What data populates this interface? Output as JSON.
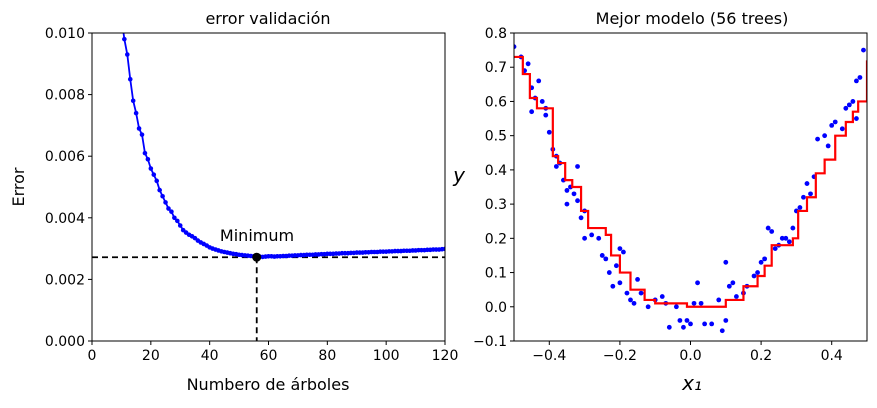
{
  "chart_data": [
    {
      "type": "line",
      "title": "error validación",
      "xlabel": "Numbero de árboles",
      "ylabel": "Error",
      "xlim": [
        0,
        120
      ],
      "ylim": [
        0,
        0.01
      ],
      "xticks": [
        "0",
        "20",
        "40",
        "60",
        "80",
        "100",
        "120"
      ],
      "yticks": [
        "0.000",
        "0.002",
        "0.004",
        "0.006",
        "0.008",
        "0.010"
      ],
      "annotation": "Minimum",
      "min_point": {
        "x": 56,
        "y": 0.00272
      },
      "series_color": "#0000ff",
      "x": [
        10,
        11,
        12,
        13,
        14,
        15,
        16,
        17,
        18,
        19,
        20,
        21,
        22,
        23,
        24,
        25,
        26,
        27,
        28,
        29,
        30,
        31,
        32,
        33,
        34,
        35,
        36,
        37,
        38,
        39,
        40,
        41,
        42,
        43,
        44,
        45,
        46,
        47,
        48,
        49,
        50,
        51,
        52,
        53,
        54,
        55,
        56,
        57,
        58,
        59,
        60,
        61,
        62,
        63,
        64,
        65,
        66,
        67,
        68,
        69,
        70,
        71,
        72,
        73,
        74,
        75,
        76,
        77,
        78,
        79,
        80,
        81,
        82,
        83,
        84,
        85,
        86,
        87,
        88,
        89,
        90,
        91,
        92,
        93,
        94,
        95,
        96,
        97,
        98,
        99,
        100,
        101,
        102,
        103,
        104,
        105,
        106,
        107,
        108,
        109,
        110,
        111,
        112,
        113,
        114,
        115,
        116,
        117,
        118,
        119,
        120
      ],
      "y": [
        0.0105,
        0.0098,
        0.0093,
        0.0085,
        0.0078,
        0.0074,
        0.0069,
        0.0067,
        0.0061,
        0.0059,
        0.0056,
        0.0054,
        0.0052,
        0.0049,
        0.0047,
        0.0045,
        0.0043,
        0.0042,
        0.004,
        0.0039,
        0.00375,
        0.0036,
        0.00352,
        0.00345,
        0.0034,
        0.00334,
        0.00326,
        0.0032,
        0.00315,
        0.0031,
        0.00304,
        0.003,
        0.00297,
        0.00294,
        0.00291,
        0.00289,
        0.00287,
        0.00285,
        0.00283,
        0.00282,
        0.0028,
        0.00279,
        0.00278,
        0.00277,
        0.00276,
        0.00275,
        0.00272,
        0.00274,
        0.00273,
        0.00274,
        0.00275,
        0.00275,
        0.00274,
        0.00275,
        0.00275,
        0.00276,
        0.00276,
        0.00277,
        0.00277,
        0.00278,
        0.00278,
        0.00279,
        0.00279,
        0.0028,
        0.0028,
        0.0028,
        0.00281,
        0.00281,
        0.00282,
        0.00282,
        0.00283,
        0.00283,
        0.00283,
        0.00284,
        0.00284,
        0.00285,
        0.00285,
        0.00285,
        0.00286,
        0.00286,
        0.00287,
        0.00287,
        0.00287,
        0.00288,
        0.00288,
        0.00289,
        0.00289,
        0.00289,
        0.0029,
        0.0029,
        0.0029,
        0.00291,
        0.00291,
        0.00292,
        0.00292,
        0.00292,
        0.00293,
        0.00293,
        0.00293,
        0.00294,
        0.00294,
        0.00295,
        0.00295,
        0.00295,
        0.00296,
        0.00296,
        0.00297,
        0.00297,
        0.00297,
        0.00298,
        0.00299
      ]
    },
    {
      "type": "scatter",
      "title": "Mejor modelo (56 trees)",
      "xlabel": "x₁",
      "ylabel": "y",
      "xlim": [
        -0.5,
        0.5
      ],
      "ylim": [
        -0.1,
        0.8
      ],
      "xticks": [
        "−0.4",
        "−0.2",
        "0.0",
        "0.2",
        "0.4"
      ],
      "yticks": [
        "−0.1",
        "0.0",
        "0.1",
        "0.2",
        "0.3",
        "0.4",
        "0.5",
        "0.6",
        "0.7",
        "0.8"
      ],
      "points_color": "#0000ff",
      "step_color": "#ff0000",
      "points": [
        [
          -0.5,
          0.76
        ],
        [
          -0.48,
          0.73
        ],
        [
          -0.47,
          0.69
        ],
        [
          -0.46,
          0.71
        ],
        [
          -0.45,
          0.64
        ],
        [
          -0.45,
          0.57
        ],
        [
          -0.44,
          0.61
        ],
        [
          -0.43,
          0.66
        ],
        [
          -0.42,
          0.6
        ],
        [
          -0.41,
          0.58
        ],
        [
          -0.41,
          0.56
        ],
        [
          -0.4,
          0.51
        ],
        [
          -0.39,
          0.46
        ],
        [
          -0.38,
          0.44
        ],
        [
          -0.38,
          0.41
        ],
        [
          -0.37,
          0.42
        ],
        [
          -0.36,
          0.37
        ],
        [
          -0.35,
          0.3
        ],
        [
          -0.35,
          0.34
        ],
        [
          -0.34,
          0.35
        ],
        [
          -0.33,
          0.33
        ],
        [
          -0.32,
          0.41
        ],
        [
          -0.32,
          0.31
        ],
        [
          -0.31,
          0.26
        ],
        [
          -0.3,
          0.28
        ],
        [
          -0.3,
          0.2
        ],
        [
          -0.28,
          0.21
        ],
        [
          -0.26,
          0.2
        ],
        [
          -0.25,
          0.15
        ],
        [
          -0.24,
          0.14
        ],
        [
          -0.23,
          0.1
        ],
        [
          -0.22,
          0.06
        ],
        [
          -0.21,
          0.12
        ],
        [
          -0.2,
          0.17
        ],
        [
          -0.2,
          0.07
        ],
        [
          -0.19,
          0.16
        ],
        [
          -0.18,
          0.04
        ],
        [
          -0.17,
          0.02
        ],
        [
          -0.16,
          0.01
        ],
        [
          -0.15,
          0.08
        ],
        [
          -0.14,
          0.04
        ],
        [
          -0.12,
          0.0
        ],
        [
          -0.1,
          0.02
        ],
        [
          -0.08,
          0.03
        ],
        [
          -0.07,
          0.01
        ],
        [
          -0.06,
          -0.06
        ],
        [
          -0.04,
          0.0
        ],
        [
          -0.03,
          -0.04
        ],
        [
          -0.02,
          -0.06
        ],
        [
          -0.01,
          -0.04
        ],
        [
          0.0,
          -0.05
        ],
        [
          0.01,
          0.01
        ],
        [
          0.02,
          0.07
        ],
        [
          0.03,
          0.01
        ],
        [
          0.04,
          -0.05
        ],
        [
          0.06,
          -0.05
        ],
        [
          0.08,
          0.02
        ],
        [
          0.09,
          -0.07
        ],
        [
          0.1,
          -0.04
        ],
        [
          0.1,
          0.13
        ],
        [
          0.11,
          0.06
        ],
        [
          0.12,
          0.07
        ],
        [
          0.13,
          0.03
        ],
        [
          0.15,
          0.04
        ],
        [
          0.16,
          0.06
        ],
        [
          0.18,
          0.09
        ],
        [
          0.19,
          0.1
        ],
        [
          0.2,
          0.13
        ],
        [
          0.21,
          0.14
        ],
        [
          0.22,
          0.23
        ],
        [
          0.23,
          0.22
        ],
        [
          0.24,
          0.17
        ],
        [
          0.25,
          0.18
        ],
        [
          0.26,
          0.2
        ],
        [
          0.27,
          0.2
        ],
        [
          0.28,
          0.19
        ],
        [
          0.29,
          0.23
        ],
        [
          0.3,
          0.28
        ],
        [
          0.31,
          0.29
        ],
        [
          0.32,
          0.32
        ],
        [
          0.33,
          0.36
        ],
        [
          0.34,
          0.33
        ],
        [
          0.35,
          0.38
        ],
        [
          0.36,
          0.49
        ],
        [
          0.38,
          0.5
        ],
        [
          0.39,
          0.47
        ],
        [
          0.4,
          0.53
        ],
        [
          0.41,
          0.54
        ],
        [
          0.43,
          0.52
        ],
        [
          0.44,
          0.58
        ],
        [
          0.45,
          0.59
        ],
        [
          0.46,
          0.6
        ],
        [
          0.47,
          0.55
        ],
        [
          0.47,
          0.66
        ],
        [
          0.48,
          0.67
        ],
        [
          0.49,
          0.75
        ]
      ],
      "step_x": [
        -0.5,
        -0.475,
        -0.455,
        -0.435,
        -0.39,
        -0.375,
        -0.355,
        -0.335,
        -0.31,
        -0.29,
        -0.24,
        -0.225,
        -0.2,
        -0.17,
        -0.13,
        -0.1,
        -0.01,
        0.1,
        0.1,
        0.15,
        0.175,
        0.19,
        0.21,
        0.23,
        0.29,
        0.305,
        0.33,
        0.355,
        0.38,
        0.41,
        0.44,
        0.46,
        0.475,
        0.5
      ],
      "step_y": [
        0.73,
        0.68,
        0.61,
        0.58,
        0.44,
        0.42,
        0.37,
        0.35,
        0.28,
        0.23,
        0.21,
        0.15,
        0.1,
        0.05,
        0.02,
        0.01,
        0.0,
        0.0,
        0.02,
        0.06,
        0.06,
        0.09,
        0.12,
        0.18,
        0.2,
        0.28,
        0.32,
        0.39,
        0.43,
        0.5,
        0.54,
        0.57,
        0.6,
        0.72
      ]
    }
  ]
}
